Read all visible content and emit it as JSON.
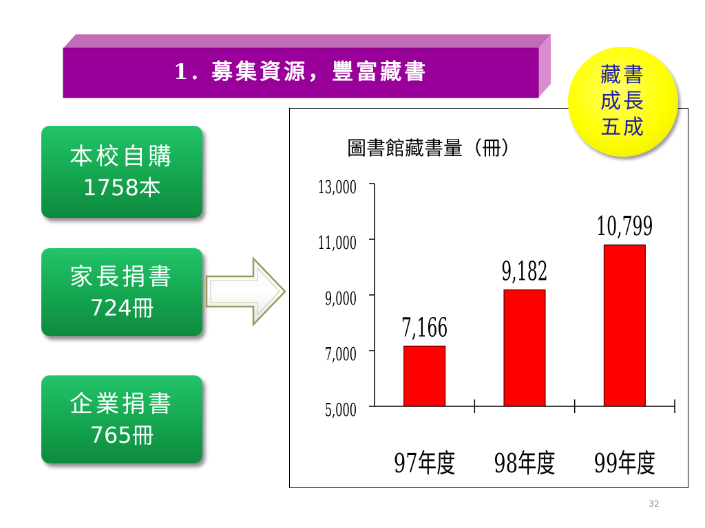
{
  "slide": {
    "title": "1. 募集資源，豐富藏書",
    "page_number": "32"
  },
  "sources": [
    {
      "label": "本校自購",
      "amount": "1758本"
    },
    {
      "label": "家長捐書",
      "amount": "724冊"
    },
    {
      "label": "企業捐書",
      "amount": "765冊"
    }
  ],
  "badge": {
    "lines": [
      "藏書",
      "成長",
      "五成"
    ]
  },
  "colors": {
    "banner": "#990099",
    "box": "#13a24d",
    "bar": "#ff0000",
    "badge": "#ffff00",
    "badge_text": "#1f1fa8"
  },
  "chart_data": {
    "type": "bar",
    "title": "圖書館藏書量（冊）",
    "categories": [
      "97年度",
      "98年度",
      "99年度"
    ],
    "values": [
      7166,
      9182,
      10799
    ],
    "value_labels": [
      "7,166",
      "9,182",
      "10,799"
    ],
    "ylim": [
      5000,
      13000
    ],
    "yticks": [
      5000,
      7000,
      9000,
      11000,
      13000
    ],
    "ytick_labels": [
      "5,000",
      "7,000",
      "9,000",
      "11,000",
      "13,000"
    ],
    "grid": false,
    "legend": "none"
  }
}
